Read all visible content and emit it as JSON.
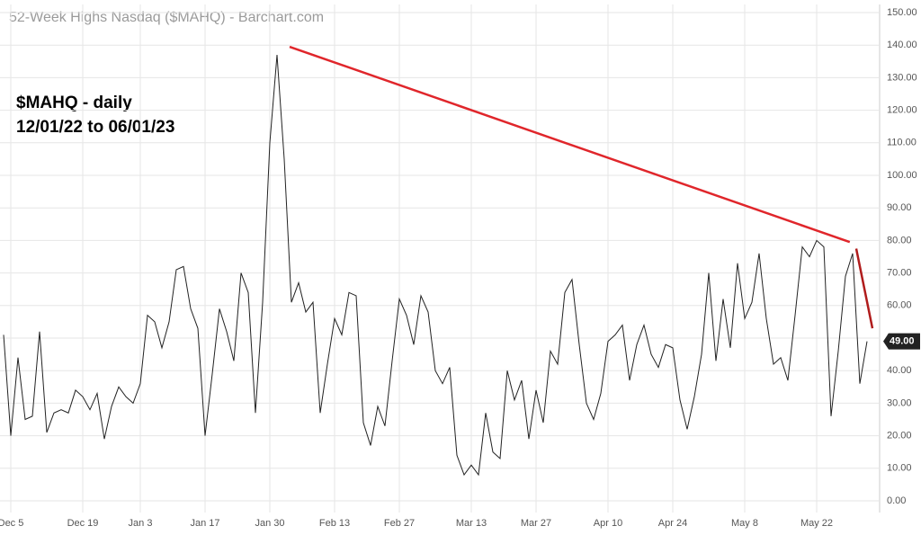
{
  "chart_data": {
    "type": "line",
    "title": "52-Week Highs Nasdaq ($MAHQ) - Barchart.com",
    "annotations": [
      "$MAHQ - daily",
      "12/01/22 to 06/01/23"
    ],
    "categories": [
      null,
      "Dec 5",
      null,
      null,
      null,
      null,
      null,
      null,
      null,
      null,
      null,
      "Dec 19",
      null,
      null,
      null,
      null,
      null,
      null,
      null,
      "Jan 3",
      null,
      null,
      null,
      null,
      null,
      null,
      null,
      null,
      "Jan 17",
      null,
      null,
      null,
      null,
      null,
      null,
      null,
      null,
      "Jan 30",
      null,
      null,
      null,
      null,
      null,
      null,
      null,
      null,
      "Feb 13",
      null,
      null,
      null,
      null,
      null,
      null,
      null,
      null,
      "Feb 27",
      null,
      null,
      null,
      null,
      null,
      null,
      null,
      null,
      null,
      "Mar 13",
      null,
      null,
      null,
      null,
      null,
      null,
      null,
      null,
      "Mar 27",
      null,
      null,
      null,
      null,
      null,
      null,
      null,
      null,
      null,
      "Apr 10",
      null,
      null,
      null,
      null,
      null,
      null,
      null,
      null,
      "Apr 24",
      null,
      null,
      null,
      null,
      null,
      null,
      null,
      null,
      null,
      "May 8",
      null,
      null,
      null,
      null,
      null,
      null,
      null,
      null,
      null,
      "May 22",
      null,
      null,
      null,
      null,
      null,
      null,
      null
    ],
    "series": [
      {
        "name": "$MAHQ",
        "color": "#222222",
        "values": [
          51,
          20,
          44,
          25,
          26,
          52,
          21,
          27,
          28,
          27,
          34,
          32,
          28,
          33,
          19,
          29,
          35,
          32,
          30,
          36,
          57,
          55,
          47,
          55,
          71,
          72,
          59,
          53,
          20,
          39,
          59,
          52,
          43,
          70,
          64,
          27,
          61,
          110,
          137,
          105,
          61,
          67,
          58,
          61,
          27,
          42,
          56,
          51,
          64,
          63,
          24,
          17,
          29,
          23,
          43,
          62,
          57,
          48,
          63,
          58,
          40,
          36,
          41,
          14,
          8,
          11,
          8,
          27,
          15,
          13,
          40,
          31,
          37,
          19,
          34,
          24,
          46,
          42,
          64,
          68,
          48,
          30,
          25,
          33,
          49,
          51,
          54,
          37,
          48,
          54,
          45,
          41,
          48,
          47,
          31,
          22,
          32,
          45,
          70,
          43,
          62,
          47,
          73,
          56,
          61,
          76,
          56,
          42,
          44,
          37,
          57,
          78,
          75,
          80,
          78,
          26,
          46,
          69,
          76,
          36,
          49
        ],
        "value_labels": [
          null,
          null,
          null,
          null,
          null,
          null,
          null,
          null,
          null,
          null,
          null,
          null,
          null,
          null,
          null,
          null,
          null,
          null,
          null,
          null,
          null,
          null,
          null,
          null,
          null,
          null,
          null,
          null,
          null,
          null,
          null,
          null,
          null,
          null,
          null,
          null,
          null,
          null,
          null,
          null,
          null,
          null,
          null,
          null,
          null,
          null,
          null,
          null,
          null,
          null,
          null,
          null,
          null,
          null,
          null,
          null,
          null,
          null,
          null,
          null,
          null,
          null,
          null,
          null,
          null,
          null,
          null,
          null,
          null,
          null,
          null,
          null,
          null,
          null,
          null,
          null,
          null,
          null,
          null,
          null,
          null,
          null,
          null,
          null,
          null,
          null,
          null,
          null,
          null,
          null,
          null,
          null,
          null,
          null,
          null,
          null,
          null,
          null,
          null,
          null,
          null,
          null,
          null,
          null,
          null,
          null,
          null,
          null,
          null,
          null,
          null,
          null,
          null,
          null,
          null,
          null,
          null,
          null,
          null,
          null,
          "49.00"
        ]
      }
    ],
    "trend_lines": [
      {
        "x": [
          39.75,
          117.6
        ],
        "y": [
          139.5,
          79.5
        ],
        "color": "#e0262b"
      },
      {
        "x": [
          118.5,
          120.75
        ],
        "y": [
          77.5,
          53
        ],
        "color": "#b01c1c"
      }
    ],
    "ylim": [
      0,
      150
    ],
    "yticks": [
      {
        "value": 0,
        "label": "0.00"
      },
      {
        "value": 10,
        "label": "10.00"
      },
      {
        "value": 20,
        "label": "20.00"
      },
      {
        "value": 30,
        "label": "30.00"
      },
      {
        "value": 40,
        "label": "40.00"
      },
      {
        "value": 50,
        "label": "50.00"
      },
      {
        "value": 60,
        "label": "60.00"
      },
      {
        "value": 70,
        "label": "70.00"
      },
      {
        "value": 80,
        "label": "80.00"
      },
      {
        "value": 90,
        "label": "90.00"
      },
      {
        "value": 100,
        "label": "100.00"
      },
      {
        "value": 110,
        "label": "110.00"
      },
      {
        "value": 120,
        "label": "120.00"
      },
      {
        "value": 130,
        "label": "130.00"
      },
      {
        "value": 140,
        "label": "140.00"
      },
      {
        "value": 150,
        "label": "150.00"
      }
    ],
    "grid": true
  }
}
